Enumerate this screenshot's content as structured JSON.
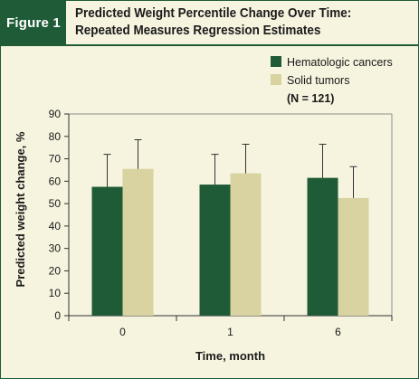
{
  "figure": {
    "label": "Figure 1",
    "title_line1": "Predicted Weight Percentile Change Over Time:",
    "title_line2": "Repeated Measures Regression Estimates"
  },
  "chart_data": {
    "type": "bar",
    "categories": [
      "0",
      "1",
      "6"
    ],
    "series": [
      {
        "name": "Hematologic cancers",
        "color": "#1f5b36",
        "values": [
          57.5,
          58.5,
          61.5
        ],
        "error_upper": [
          72,
          72,
          76.5
        ]
      },
      {
        "name": "Solid tumors",
        "color": "#d8d3a0",
        "values": [
          65.5,
          63.5,
          52.5
        ],
        "error_upper": [
          78.5,
          76.5,
          66.5
        ]
      }
    ],
    "legend_note": "(N = 121)",
    "xlabel": "Time, month",
    "ylabel": "Predicted weight change, %",
    "ylim": [
      0,
      90
    ],
    "yticks": [
      0,
      10,
      20,
      30,
      40,
      50,
      60,
      70,
      80,
      90
    ],
    "grid": false,
    "legend_position": "top-right"
  }
}
